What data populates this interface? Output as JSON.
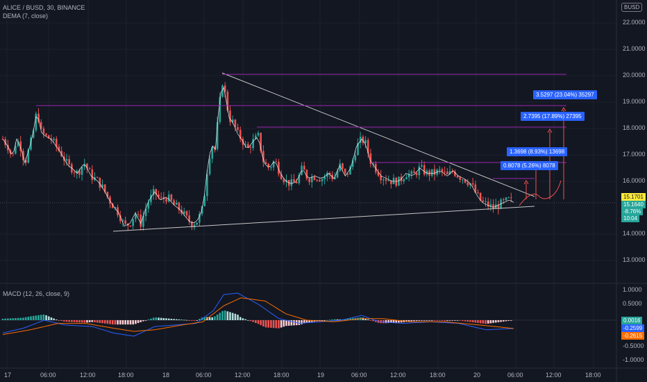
{
  "header": {
    "symbol": "ALICE / BUSD, 30, BINANCE",
    "indicator": "DEMA (7, close)",
    "currency": "BUSD",
    "macd_label": "MACD (12, 26, close, 9)"
  },
  "price_axis": [
    "22.0000",
    "21.0000",
    "20.0000",
    "19.0000",
    "18.0000",
    "17.0000",
    "16.0000",
    "14.0000",
    "13.0000"
  ],
  "price_badges": {
    "last": "15.1701",
    "dema": "15.1640",
    "change": "-8.76%",
    "countdown": "10:04"
  },
  "macd_axis": [
    "1.0000",
    "0.5000",
    "-0.5000",
    "-1.0000"
  ],
  "macd_badges": {
    "hist": "0.0016",
    "macd": "-0.2599",
    "signal": "-0.2615"
  },
  "time_axis": [
    "17",
    "06:00",
    "12:00",
    "18:00",
    "18",
    "06:00",
    "12:00",
    "18:00",
    "19",
    "06:00",
    "12:00",
    "18:00",
    "20",
    "06:00",
    "12:00",
    "18:00"
  ],
  "measurements": [
    "3.5297 (23.04%) 35297",
    "2.7395 (17.89%) 27395",
    "1.3698 (8.93%) 13698",
    "0.8078 (5.26%) 8078"
  ],
  "colors": {
    "up": "#26a69a",
    "down": "#ef5350",
    "dema": "#ffffff",
    "macd": "#2962ff",
    "signal": "#ff6d00",
    "level": "#9c27b0",
    "measure": "#2962ff",
    "bg": "#131722"
  },
  "chart_data": [
    {
      "type": "candlestick",
      "title": "ALICE / BUSD, 30, BINANCE",
      "ylim": [
        12.6,
        22.4
      ],
      "price_path": [
        [
          0,
          17.6
        ],
        [
          8,
          17.3
        ],
        [
          14,
          16.9
        ],
        [
          20,
          17.6
        ],
        [
          26,
          17.3
        ],
        [
          32,
          16.7
        ],
        [
          40,
          17.4
        ],
        [
          46,
          18.1
        ],
        [
          50,
          18.8
        ],
        [
          54,
          17.9
        ],
        [
          62,
          17.7
        ],
        [
          70,
          17.6
        ],
        [
          78,
          17.3
        ],
        [
          86,
          17.0
        ],
        [
          94,
          16.6
        ],
        [
          100,
          16.5
        ],
        [
          108,
          16.3
        ],
        [
          118,
          16.7
        ],
        [
          128,
          16.2
        ],
        [
          138,
          16.0
        ],
        [
          146,
          15.7
        ],
        [
          154,
          15.3
        ],
        [
          162,
          15.0
        ],
        [
          168,
          14.8
        ],
        [
          176,
          14.3
        ],
        [
          184,
          14.4
        ],
        [
          192,
          14.8
        ],
        [
          200,
          14.4
        ],
        [
          210,
          15.2
        ],
        [
          220,
          15.6
        ],
        [
          228,
          15.3
        ],
        [
          238,
          15.4
        ],
        [
          248,
          15.1
        ],
        [
          258,
          14.9
        ],
        [
          266,
          14.6
        ],
        [
          274,
          14.4
        ],
        [
          282,
          14.5
        ],
        [
          290,
          15.0
        ],
        [
          296,
          16.4
        ],
        [
          302,
          17.4
        ],
        [
          308,
          17.2
        ],
        [
          312,
          18.5
        ],
        [
          318,
          19.8
        ],
        [
          322,
          19.3
        ],
        [
          328,
          18.4
        ],
        [
          334,
          18.2
        ],
        [
          340,
          17.8
        ],
        [
          346,
          17.6
        ],
        [
          354,
          17.2
        ],
        [
          362,
          17.5
        ],
        [
          370,
          17.7
        ],
        [
          378,
          16.7
        ],
        [
          386,
          16.5
        ],
        [
          394,
          16.8
        ],
        [
          402,
          16.3
        ],
        [
          410,
          16.0
        ],
        [
          418,
          15.9
        ],
        [
          426,
          16.0
        ],
        [
          434,
          16.5
        ],
        [
          442,
          16.1
        ],
        [
          452,
          16.2
        ],
        [
          462,
          16.1
        ],
        [
          472,
          16.3
        ],
        [
          480,
          16.1
        ],
        [
          488,
          16.6
        ],
        [
          496,
          16.2
        ],
        [
          504,
          16.5
        ],
        [
          512,
          17.3
        ],
        [
          520,
          17.6
        ],
        [
          526,
          17.4
        ],
        [
          532,
          16.8
        ],
        [
          540,
          16.5
        ],
        [
          548,
          16.2
        ],
        [
          556,
          16.1
        ],
        [
          564,
          16.0
        ],
        [
          574,
          16.0
        ],
        [
          584,
          16.3
        ],
        [
          594,
          16.2
        ],
        [
          604,
          16.5
        ],
        [
          614,
          16.3
        ],
        [
          624,
          16.3
        ],
        [
          634,
          16.4
        ],
        [
          644,
          16.2
        ],
        [
          652,
          16.4
        ],
        [
          660,
          16.2
        ],
        [
          668,
          16.1
        ],
        [
          678,
          15.9
        ],
        [
          686,
          15.5
        ],
        [
          694,
          15.2
        ],
        [
          702,
          15.1
        ],
        [
          710,
          15.0
        ],
        [
          718,
          15.1
        ],
        [
          726,
          15.2
        ],
        [
          734,
          15.3
        ],
        [
          740,
          15.2
        ]
      ],
      "macd": {
        "range": [
          -1.3,
          1.3
        ],
        "macd_path": [
          [
            0,
            -0.4
          ],
          [
            30,
            -0.25
          ],
          [
            60,
            0.0
          ],
          [
            90,
            -0.15
          ],
          [
            130,
            -0.2
          ],
          [
            160,
            -0.4
          ],
          [
            190,
            -0.5
          ],
          [
            220,
            -0.2
          ],
          [
            250,
            -0.15
          ],
          [
            280,
            -0.1
          ],
          [
            305,
            0.3
          ],
          [
            320,
            0.8
          ],
          [
            340,
            0.85
          ],
          [
            370,
            0.5
          ],
          [
            400,
            0.05
          ],
          [
            430,
            -0.1
          ],
          [
            460,
            -0.05
          ],
          [
            490,
            0.0
          ],
          [
            520,
            0.15
          ],
          [
            545,
            -0.05
          ],
          [
            580,
            -0.1
          ],
          [
            620,
            -0.05
          ],
          [
            660,
            -0.1
          ],
          [
            700,
            -0.3
          ],
          [
            740,
            -0.26
          ]
        ],
        "signal_path": [
          [
            0,
            -0.45
          ],
          [
            40,
            -0.3
          ],
          [
            80,
            -0.1
          ],
          [
            120,
            -0.1
          ],
          [
            160,
            -0.25
          ],
          [
            190,
            -0.35
          ],
          [
            220,
            -0.3
          ],
          [
            260,
            -0.15
          ],
          [
            290,
            -0.05
          ],
          [
            320,
            0.45
          ],
          [
            345,
            0.7
          ],
          [
            380,
            0.6
          ],
          [
            410,
            0.2
          ],
          [
            440,
            0.0
          ],
          [
            480,
            -0.05
          ],
          [
            520,
            0.05
          ],
          [
            550,
            0.05
          ],
          [
            590,
            -0.05
          ],
          [
            640,
            -0.05
          ],
          [
            690,
            -0.15
          ],
          [
            740,
            -0.26
          ]
        ]
      }
    }
  ]
}
